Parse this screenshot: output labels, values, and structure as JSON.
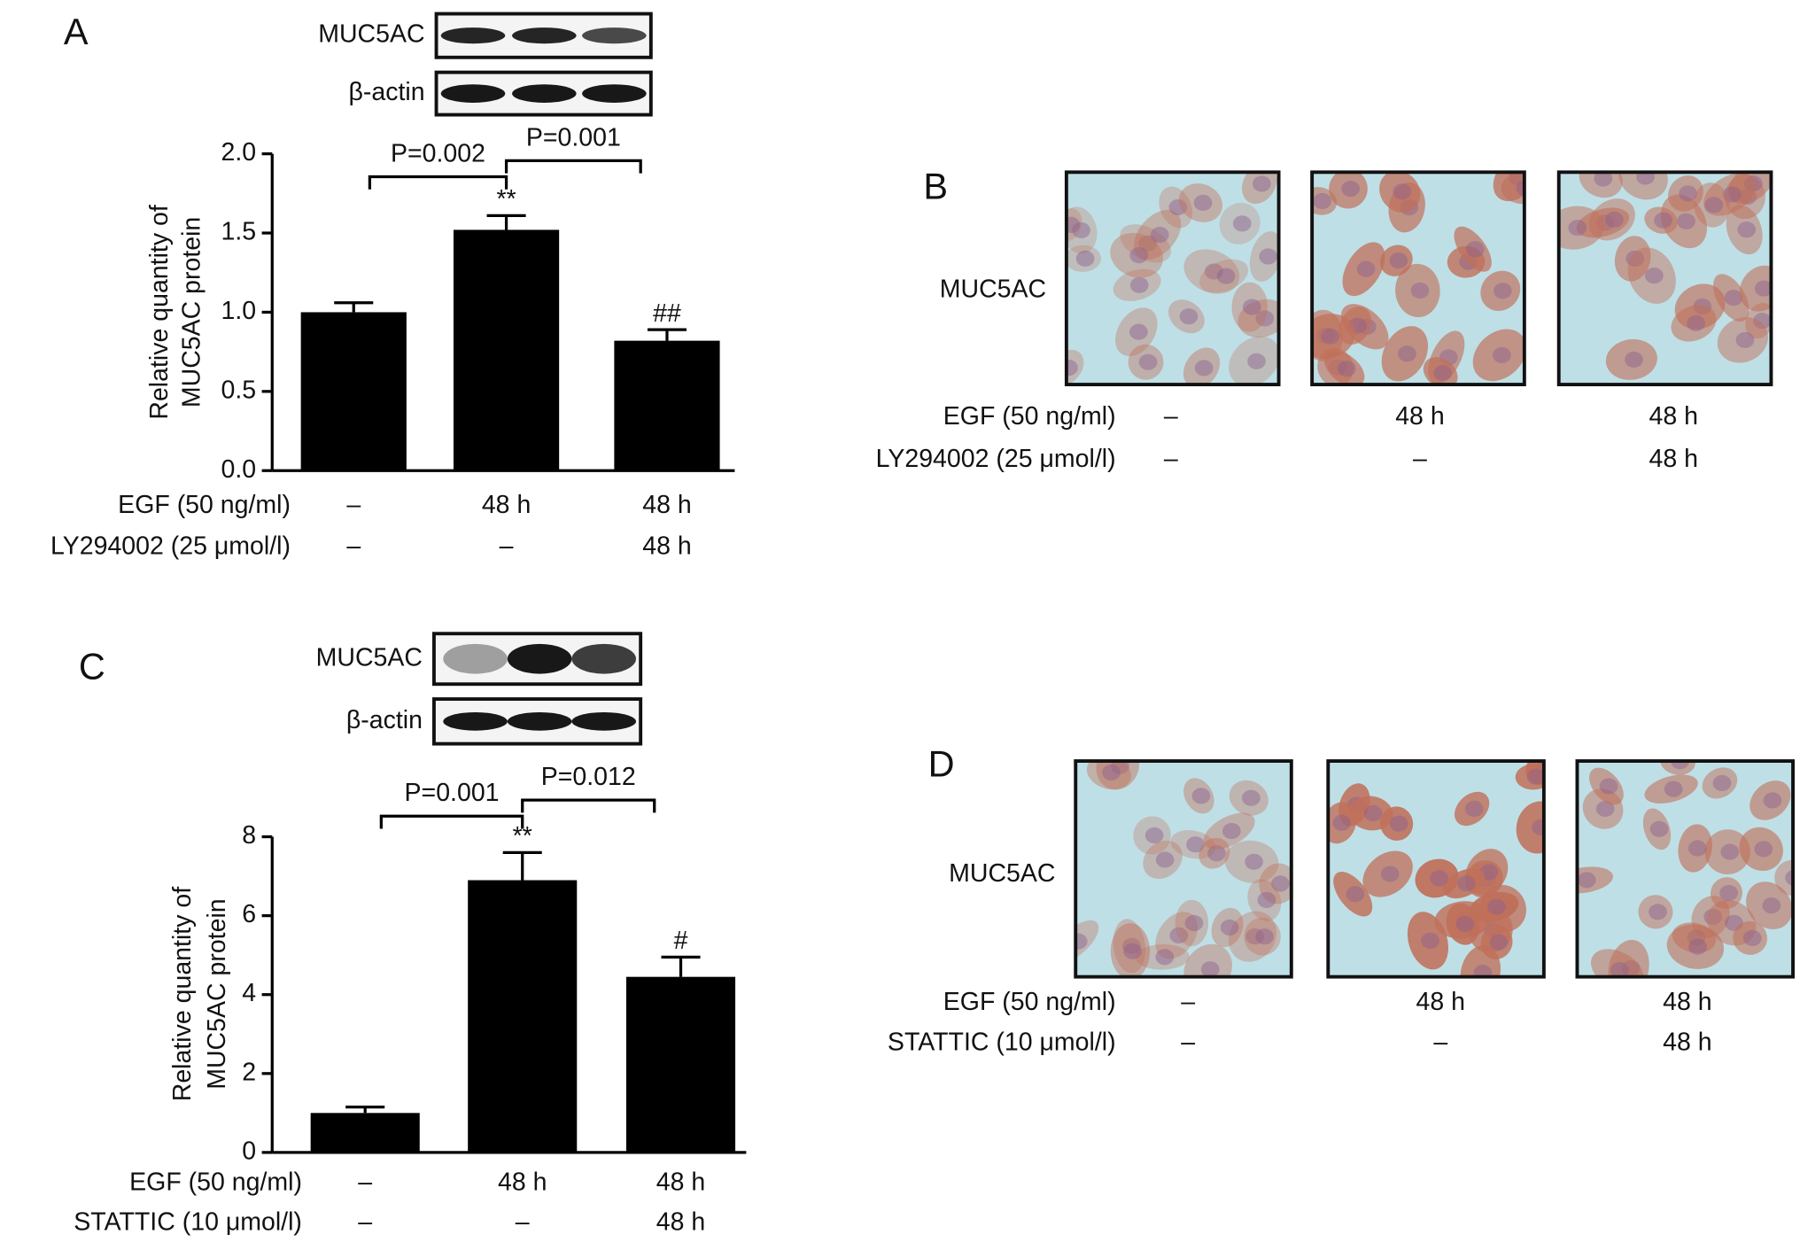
{
  "chart_data": [
    {
      "type": "bar",
      "panel_label": "A",
      "blot": [
        "MUC5AC",
        "β-actin"
      ],
      "ylabel": [
        "Relative quantity of",
        "MUC5AC protein"
      ],
      "values": [
        1.0,
        1.52,
        0.82
      ],
      "errors": [
        0.06,
        0.09,
        0.07
      ],
      "color": "#000000",
      "significance": [
        null,
        "**",
        "##"
      ],
      "brackets": [
        {
          "label": "P=0.002",
          "between": [
            0,
            1
          ]
        },
        {
          "label": "P=0.001",
          "between": [
            1,
            2
          ]
        }
      ],
      "ylim": [
        0,
        2
      ],
      "yticks": [
        {
          "value": 0,
          "label": "0.0"
        },
        0.5,
        {
          "value": 1,
          "label": "1.0"
        },
        1.5,
        {
          "value": 2,
          "label": "2.0"
        }
      ],
      "treatments": [
        {
          "name": "EGF (50 ng/ml)",
          "cells": [
            "–",
            "48 h",
            "48 h"
          ]
        },
        {
          "name": "LY294002 (25 μmol/l)",
          "cells": [
            "–",
            "–",
            "48 h"
          ]
        }
      ]
    },
    {
      "type": "bar",
      "panel_label": "C",
      "blot": [
        "MUC5AC",
        "β-actin"
      ],
      "ylabel": [
        "Relative quantity of",
        "MUC5AC protein"
      ],
      "values": [
        1.0,
        6.9,
        4.45
      ],
      "errors": [
        0.15,
        0.7,
        0.5
      ],
      "color": "#000000",
      "significance": [
        null,
        "**",
        "#"
      ],
      "brackets": [
        {
          "label": "P=0.001",
          "between": [
            0,
            1
          ]
        },
        {
          "label": "P=0.012",
          "between": [
            1,
            2
          ]
        }
      ],
      "ylim": [
        0,
        8
      ],
      "yticks": [
        0,
        2,
        4,
        6,
        8
      ],
      "treatments": [
        {
          "name": "EGF (50 ng/ml)",
          "cells": [
            "–",
            "48 h",
            "48 h"
          ]
        },
        {
          "name": "STATTIC (10 μmol/l)",
          "cells": [
            "–",
            "–",
            "48 h"
          ]
        }
      ]
    }
  ],
  "image_panels": [
    {
      "panel_label": "B",
      "row_label": "MUC5AC",
      "treatments": [
        {
          "name": "EGF (50 ng/ml)",
          "cells": [
            "–",
            "48 h",
            "48 h"
          ]
        },
        {
          "name": "LY294002 (25 μmol/l)",
          "cells": [
            "–",
            "–",
            "48 h"
          ]
        }
      ]
    },
    {
      "panel_label": "D",
      "row_label": "MUC5AC",
      "treatments": [
        {
          "name": "EGF (50 ng/ml)",
          "cells": [
            "–",
            "48 h",
            "48 h"
          ]
        },
        {
          "name": "STATTIC (10 μmol/l)",
          "cells": [
            "–",
            "–",
            "48 h"
          ]
        }
      ]
    }
  ]
}
